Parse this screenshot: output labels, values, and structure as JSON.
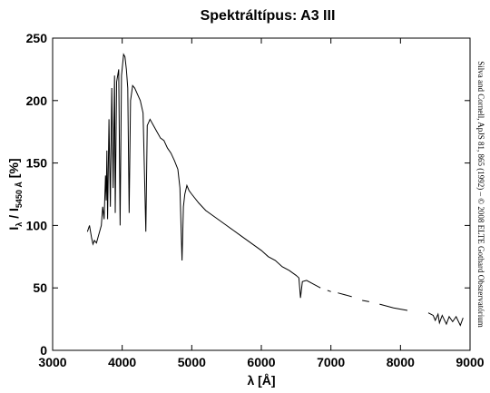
{
  "chart_data": {
    "type": "line",
    "title": "Spektráltípus: A3 III",
    "xlabel": "λ [Å]",
    "ylabel_parts": [
      "I",
      "λ",
      " / I",
      "5450 Å",
      " [%]"
    ],
    "credit": "Silva and Cornell, ApJS 81, 865 (1992) – © 2008 ELTE Gothard Obszervatórium",
    "xlim": [
      3000,
      9000
    ],
    "xticks": [
      3000,
      4000,
      5000,
      6000,
      7000,
      8000,
      9000
    ],
    "ylim": [
      0,
      250
    ],
    "yticks": [
      0,
      50,
      100,
      150,
      200,
      250
    ],
    "grid": false,
    "x": [
      3500,
      3530,
      3560,
      3580,
      3600,
      3630,
      3660,
      3700,
      3720,
      3740,
      3760,
      3770,
      3780,
      3790,
      3810,
      3830,
      3850,
      3870,
      3890,
      3900,
      3920,
      3950,
      3970,
      3990,
      4020,
      4040,
      4060,
      4080,
      4100,
      4120,
      4150,
      4180,
      4220,
      4260,
      4300,
      4340,
      4360,
      4400,
      4450,
      4500,
      4550,
      4600,
      4650,
      4700,
      4750,
      4800,
      4830,
      4860,
      4880,
      4900,
      4930,
      4960,
      5000,
      5100,
      5200,
      5300,
      5400,
      5500,
      5600,
      5700,
      5800,
      5900,
      6000,
      6100,
      6200,
      6300,
      6400,
      6500,
      6540,
      6563,
      6590,
      6650,
      6750,
      6850,
      6880,
      6950,
      7000,
      7050,
      7100,
      7300,
      7350,
      7450,
      7550,
      7600,
      7700,
      7900,
      8100,
      8250,
      8400,
      8470,
      8500,
      8540,
      8560,
      8600,
      8660,
      8700,
      8750,
      8800,
      8860,
      8900
    ],
    "series": [
      {
        "name": "A3 III",
        "color": "#000000",
        "values": [
          95,
          100,
          90,
          85,
          88,
          86,
          92,
          100,
          115,
          105,
          140,
          120,
          160,
          105,
          185,
          115,
          210,
          130,
          220,
          110,
          215,
          225,
          100,
          220,
          237,
          235,
          225,
          210,
          110,
          200,
          212,
          210,
          205,
          200,
          190,
          95,
          180,
          185,
          180,
          175,
          170,
          168,
          162,
          158,
          152,
          145,
          130,
          72,
          115,
          125,
          132,
          128,
          125,
          118,
          112,
          108,
          104,
          100,
          96,
          92,
          88,
          84,
          80,
          75,
          72,
          67,
          64,
          60,
          58,
          42,
          55,
          56,
          53,
          50,
          null,
          48,
          47,
          null,
          46,
          43,
          null,
          40,
          39,
          null,
          37,
          34,
          32,
          null,
          30,
          28,
          24,
          29,
          22,
          28,
          21,
          27,
          23,
          27,
          20,
          26
        ]
      }
    ]
  }
}
